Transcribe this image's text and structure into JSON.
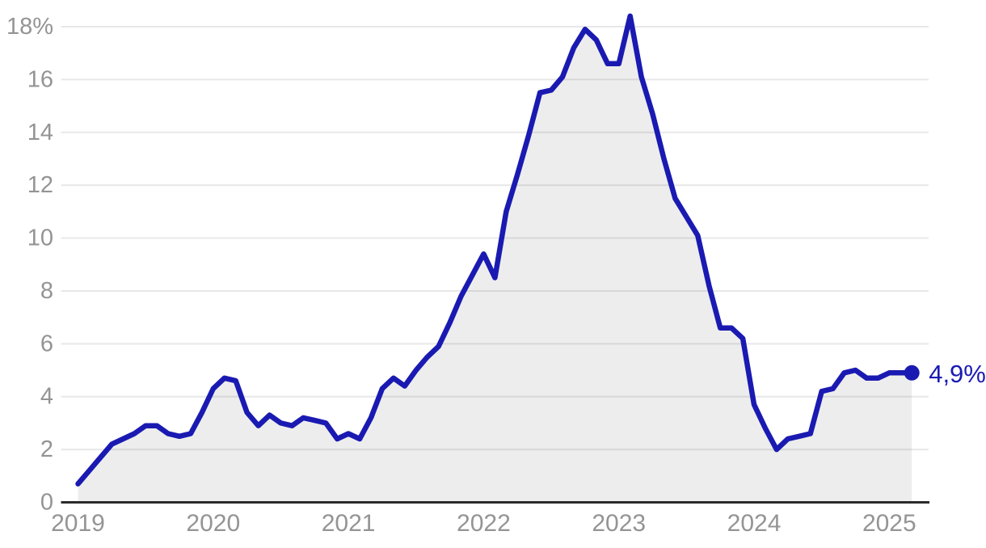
{
  "chart_data": {
    "type": "area",
    "title": "",
    "subtitle": "",
    "unit": "%",
    "grid": "on",
    "legend": "none",
    "ylim": [
      0,
      18.9
    ],
    "y_ticks": [
      0,
      2,
      4,
      6,
      8,
      10,
      12,
      14,
      16,
      18
    ],
    "y_tick_labels": [
      "0",
      "2",
      "4",
      "6",
      "8",
      "10",
      "12",
      "14",
      "16",
      "18%"
    ],
    "x_tick_labels": [
      "2019",
      "2020",
      "2021",
      "2022",
      "2023",
      "2024",
      "2025"
    ],
    "series": [
      {
        "name": "inflation-yoy-percent",
        "start_year": 2019,
        "start_month": 1,
        "points_per_year": 12,
        "values": [
          0.7,
          1.2,
          1.7,
          2.2,
          2.4,
          2.6,
          2.9,
          2.9,
          2.6,
          2.5,
          2.6,
          3.4,
          4.3,
          4.7,
          4.6,
          3.4,
          2.9,
          3.3,
          3.0,
          2.9,
          3.2,
          3.1,
          3.0,
          2.4,
          2.6,
          2.4,
          3.2,
          4.3,
          4.7,
          4.4,
          5.0,
          5.5,
          5.9,
          6.8,
          7.8,
          8.6,
          9.4,
          8.5,
          11.0,
          12.4,
          13.9,
          15.5,
          15.6,
          16.1,
          17.2,
          17.9,
          17.5,
          16.6,
          16.6,
          18.4,
          16.1,
          14.7,
          13.0,
          11.5,
          10.8,
          10.1,
          8.2,
          6.6,
          6.6,
          6.2,
          3.7,
          2.8,
          2.0,
          2.4,
          2.5,
          2.6,
          4.2,
          4.3,
          4.9,
          5.0,
          4.7,
          4.7,
          4.9,
          4.9,
          4.9
        ]
      }
    ],
    "end_value": 4.9,
    "end_label": "4,9%",
    "colors": {
      "line": "#1a1ab2",
      "marker": "#1a1ab2",
      "end_label_text": "#1a1ab2",
      "area_fill": "rgba(0,0,0,0.072)",
      "gridline": "#e8e8e8",
      "axis_line": "#2b2b2b",
      "tick_text": "#949494",
      "background": "#ffffff"
    }
  }
}
